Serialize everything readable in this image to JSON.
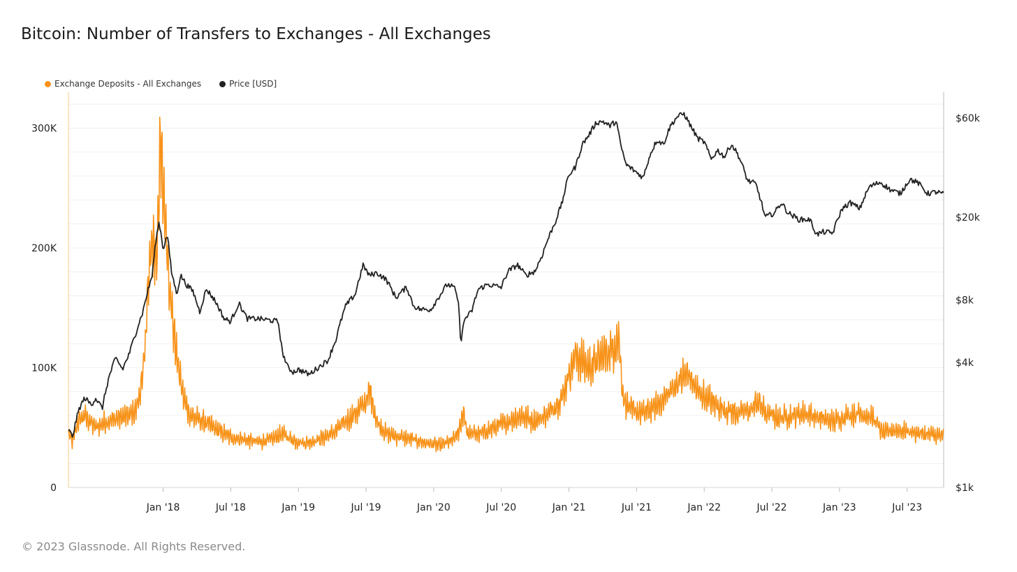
{
  "title": "Bitcoin: Number of Transfers to Exchanges - All Exchanges",
  "footer": "© 2023 Glassnode. All Rights Reserved.",
  "legend": [
    {
      "label": "Exchange Deposits - All Exchanges",
      "color": "#f7931a"
    },
    {
      "label": "Price [USD]",
      "color": "#222222"
    }
  ],
  "chart_data": {
    "type": "line",
    "title": "Bitcoin: Number of Transfers to Exchanges - All Exchanges",
    "x_range": [
      2017.3,
      2023.77
    ],
    "x_ticks": [
      {
        "label": "Jan '18",
        "t": 2018.0
      },
      {
        "label": "Jul '18",
        "t": 2018.5
      },
      {
        "label": "Jan '19",
        "t": 2019.0
      },
      {
        "label": "Jul '19",
        "t": 2019.5
      },
      {
        "label": "Jan '20",
        "t": 2020.0
      },
      {
        "label": "Jul '20",
        "t": 2020.5
      },
      {
        "label": "Jan '21",
        "t": 2021.0
      },
      {
        "label": "Jul '21",
        "t": 2021.5
      },
      {
        "label": "Jan '22",
        "t": 2022.0
      },
      {
        "label": "Jul '22",
        "t": 2022.5
      },
      {
        "label": "Jan '23",
        "t": 2023.0
      },
      {
        "label": "Jul '23",
        "t": 2023.5
      }
    ],
    "left_axis": {
      "scale": "linear",
      "range": [
        0,
        330000
      ],
      "ticks": [
        {
          "label": "0",
          "v": 0
        },
        {
          "label": "100K",
          "v": 100000
        },
        {
          "label": "200K",
          "v": 200000
        },
        {
          "label": "300K",
          "v": 300000
        }
      ]
    },
    "right_axis": {
      "scale": "log",
      "range": [
        1000,
        80000
      ],
      "ticks": [
        {
          "label": "$1k",
          "v": 1000
        },
        {
          "label": "$4k",
          "v": 4000
        },
        {
          "label": "$8k",
          "v": 8000
        },
        {
          "label": "$20k",
          "v": 20000
        },
        {
          "label": "$60k",
          "v": 60000
        }
      ]
    },
    "series": [
      {
        "name": "Exchange Deposits - All Exchanges",
        "color": "#f7931a",
        "axis": "left",
        "points": [
          [
            2017.3,
            45000
          ],
          [
            2017.33,
            38000
          ],
          [
            2017.37,
            55000
          ],
          [
            2017.42,
            60000
          ],
          [
            2017.5,
            50000
          ],
          [
            2017.58,
            55000
          ],
          [
            2017.67,
            58000
          ],
          [
            2017.75,
            60000
          ],
          [
            2017.8,
            65000
          ],
          [
            2017.85,
            90000
          ],
          [
            2017.88,
            150000
          ],
          [
            2017.92,
            210000
          ],
          [
            2017.95,
            190000
          ],
          [
            2017.98,
            280000
          ],
          [
            2018.02,
            220000
          ],
          [
            2018.06,
            150000
          ],
          [
            2018.1,
            110000
          ],
          [
            2018.15,
            75000
          ],
          [
            2018.2,
            60000
          ],
          [
            2018.3,
            55000
          ],
          [
            2018.4,
            48000
          ],
          [
            2018.5,
            42000
          ],
          [
            2018.6,
            40000
          ],
          [
            2018.7,
            38000
          ],
          [
            2018.8,
            40000
          ],
          [
            2018.88,
            45000
          ],
          [
            2018.95,
            40000
          ],
          [
            2019.05,
            37000
          ],
          [
            2019.15,
            40000
          ],
          [
            2019.25,
            45000
          ],
          [
            2019.35,
            55000
          ],
          [
            2019.45,
            65000
          ],
          [
            2019.5,
            72000
          ],
          [
            2019.53,
            80000
          ],
          [
            2019.58,
            55000
          ],
          [
            2019.65,
            45000
          ],
          [
            2019.75,
            42000
          ],
          [
            2019.85,
            40000
          ],
          [
            2019.95,
            37000
          ],
          [
            2020.05,
            35000
          ],
          [
            2020.15,
            40000
          ],
          [
            2020.2,
            50000
          ],
          [
            2020.22,
            65000
          ],
          [
            2020.25,
            45000
          ],
          [
            2020.35,
            45000
          ],
          [
            2020.45,
            50000
          ],
          [
            2020.55,
            55000
          ],
          [
            2020.65,
            60000
          ],
          [
            2020.75,
            55000
          ],
          [
            2020.85,
            62000
          ],
          [
            2020.95,
            75000
          ],
          [
            2021.0,
            95000
          ],
          [
            2021.05,
            110000
          ],
          [
            2021.1,
            105000
          ],
          [
            2021.15,
            100000
          ],
          [
            2021.2,
            105000
          ],
          [
            2021.25,
            110000
          ],
          [
            2021.32,
            115000
          ],
          [
            2021.37,
            125000
          ],
          [
            2021.4,
            75000
          ],
          [
            2021.45,
            65000
          ],
          [
            2021.55,
            62000
          ],
          [
            2021.65,
            68000
          ],
          [
            2021.75,
            80000
          ],
          [
            2021.82,
            90000
          ],
          [
            2021.88,
            95000
          ],
          [
            2021.95,
            80000
          ],
          [
            2022.05,
            72000
          ],
          [
            2022.15,
            65000
          ],
          [
            2022.25,
            62000
          ],
          [
            2022.35,
            65000
          ],
          [
            2022.4,
            72000
          ],
          [
            2022.45,
            62000
          ],
          [
            2022.55,
            58000
          ],
          [
            2022.65,
            60000
          ],
          [
            2022.75,
            62000
          ],
          [
            2022.85,
            58000
          ],
          [
            2022.95,
            55000
          ],
          [
            2023.05,
            60000
          ],
          [
            2023.15,
            62000
          ],
          [
            2023.25,
            58000
          ],
          [
            2023.32,
            45000
          ],
          [
            2023.4,
            48000
          ],
          [
            2023.5,
            47000
          ],
          [
            2023.6,
            45000
          ],
          [
            2023.68,
            44000
          ],
          [
            2023.76,
            43000
          ]
        ]
      },
      {
        "name": "Price [USD]",
        "color": "#222222",
        "axis": "right",
        "points": [
          [
            2017.3,
            1900
          ],
          [
            2017.33,
            1750
          ],
          [
            2017.38,
            2400
          ],
          [
            2017.42,
            2700
          ],
          [
            2017.47,
            2500
          ],
          [
            2017.5,
            2700
          ],
          [
            2017.55,
            2400
          ],
          [
            2017.6,
            3400
          ],
          [
            2017.65,
            4200
          ],
          [
            2017.7,
            3700
          ],
          [
            2017.75,
            4400
          ],
          [
            2017.8,
            5600
          ],
          [
            2017.85,
            7000
          ],
          [
            2017.88,
            8500
          ],
          [
            2017.92,
            10500
          ],
          [
            2017.95,
            16000
          ],
          [
            2017.97,
            19000
          ],
          [
            2018.0,
            14000
          ],
          [
            2018.03,
            16500
          ],
          [
            2018.06,
            11000
          ],
          [
            2018.1,
            8500
          ],
          [
            2018.13,
            10500
          ],
          [
            2018.17,
            9500
          ],
          [
            2018.22,
            8800
          ],
          [
            2018.27,
            7000
          ],
          [
            2018.32,
            9000
          ],
          [
            2018.38,
            8000
          ],
          [
            2018.45,
            6500
          ],
          [
            2018.5,
            6300
          ],
          [
            2018.56,
            7700
          ],
          [
            2018.62,
            6500
          ],
          [
            2018.7,
            6500
          ],
          [
            2018.78,
            6400
          ],
          [
            2018.85,
            6300
          ],
          [
            2018.88,
            4500
          ],
          [
            2018.92,
            3800
          ],
          [
            2018.96,
            3600
          ],
          [
            2019.0,
            3700
          ],
          [
            2019.08,
            3500
          ],
          [
            2019.15,
            3800
          ],
          [
            2019.22,
            4100
          ],
          [
            2019.28,
            5200
          ],
          [
            2019.35,
            7500
          ],
          [
            2019.42,
            8500
          ],
          [
            2019.48,
            11800
          ],
          [
            2019.52,
            10500
          ],
          [
            2019.58,
            10800
          ],
          [
            2019.65,
            10000
          ],
          [
            2019.72,
            8200
          ],
          [
            2019.8,
            9200
          ],
          [
            2019.85,
            7500
          ],
          [
            2019.9,
            7200
          ],
          [
            2019.98,
            7200
          ],
          [
            2020.05,
            8500
          ],
          [
            2020.1,
            9500
          ],
          [
            2020.15,
            9200
          ],
          [
            2020.18,
            8000
          ],
          [
            2020.2,
            5000
          ],
          [
            2020.23,
            6500
          ],
          [
            2020.28,
            7000
          ],
          [
            2020.33,
            9000
          ],
          [
            2020.4,
            9500
          ],
          [
            2020.5,
            9200
          ],
          [
            2020.55,
            11000
          ],
          [
            2020.62,
            11800
          ],
          [
            2020.68,
            10500
          ],
          [
            2020.75,
            11000
          ],
          [
            2020.8,
            13000
          ],
          [
            2020.85,
            16000
          ],
          [
            2020.9,
            19000
          ],
          [
            2020.95,
            23500
          ],
          [
            2021.0,
            32000
          ],
          [
            2021.05,
            35000
          ],
          [
            2021.1,
            45000
          ],
          [
            2021.15,
            50000
          ],
          [
            2021.2,
            57000
          ],
          [
            2021.25,
            58000
          ],
          [
            2021.3,
            55000
          ],
          [
            2021.35,
            58000
          ],
          [
            2021.38,
            45000
          ],
          [
            2021.42,
            36000
          ],
          [
            2021.47,
            34000
          ],
          [
            2021.55,
            31000
          ],
          [
            2021.6,
            40000
          ],
          [
            2021.65,
            47000
          ],
          [
            2021.7,
            45000
          ],
          [
            2021.75,
            55000
          ],
          [
            2021.8,
            61000
          ],
          [
            2021.85,
            63000
          ],
          [
            2021.9,
            55000
          ],
          [
            2021.95,
            48000
          ],
          [
            2022.0,
            46000
          ],
          [
            2022.05,
            38000
          ],
          [
            2022.1,
            42000
          ],
          [
            2022.15,
            39000
          ],
          [
            2022.2,
            45000
          ],
          [
            2022.25,
            40000
          ],
          [
            2022.32,
            30000
          ],
          [
            2022.38,
            29000
          ],
          [
            2022.45,
            20000
          ],
          [
            2022.52,
            21000
          ],
          [
            2022.57,
            23500
          ],
          [
            2022.62,
            21000
          ],
          [
            2022.7,
            19500
          ],
          [
            2022.78,
            19500
          ],
          [
            2022.83,
            16500
          ],
          [
            2022.88,
            17000
          ],
          [
            2022.95,
            16800
          ],
          [
            2023.02,
            22000
          ],
          [
            2023.08,
            23500
          ],
          [
            2023.15,
            22000
          ],
          [
            2023.22,
            28000
          ],
          [
            2023.3,
            29500
          ],
          [
            2023.38,
            27000
          ],
          [
            2023.45,
            26000
          ],
          [
            2023.52,
            30500
          ],
          [
            2023.58,
            29300
          ],
          [
            2023.65,
            26000
          ],
          [
            2023.72,
            26500
          ],
          [
            2023.76,
            25900
          ]
        ]
      }
    ]
  }
}
